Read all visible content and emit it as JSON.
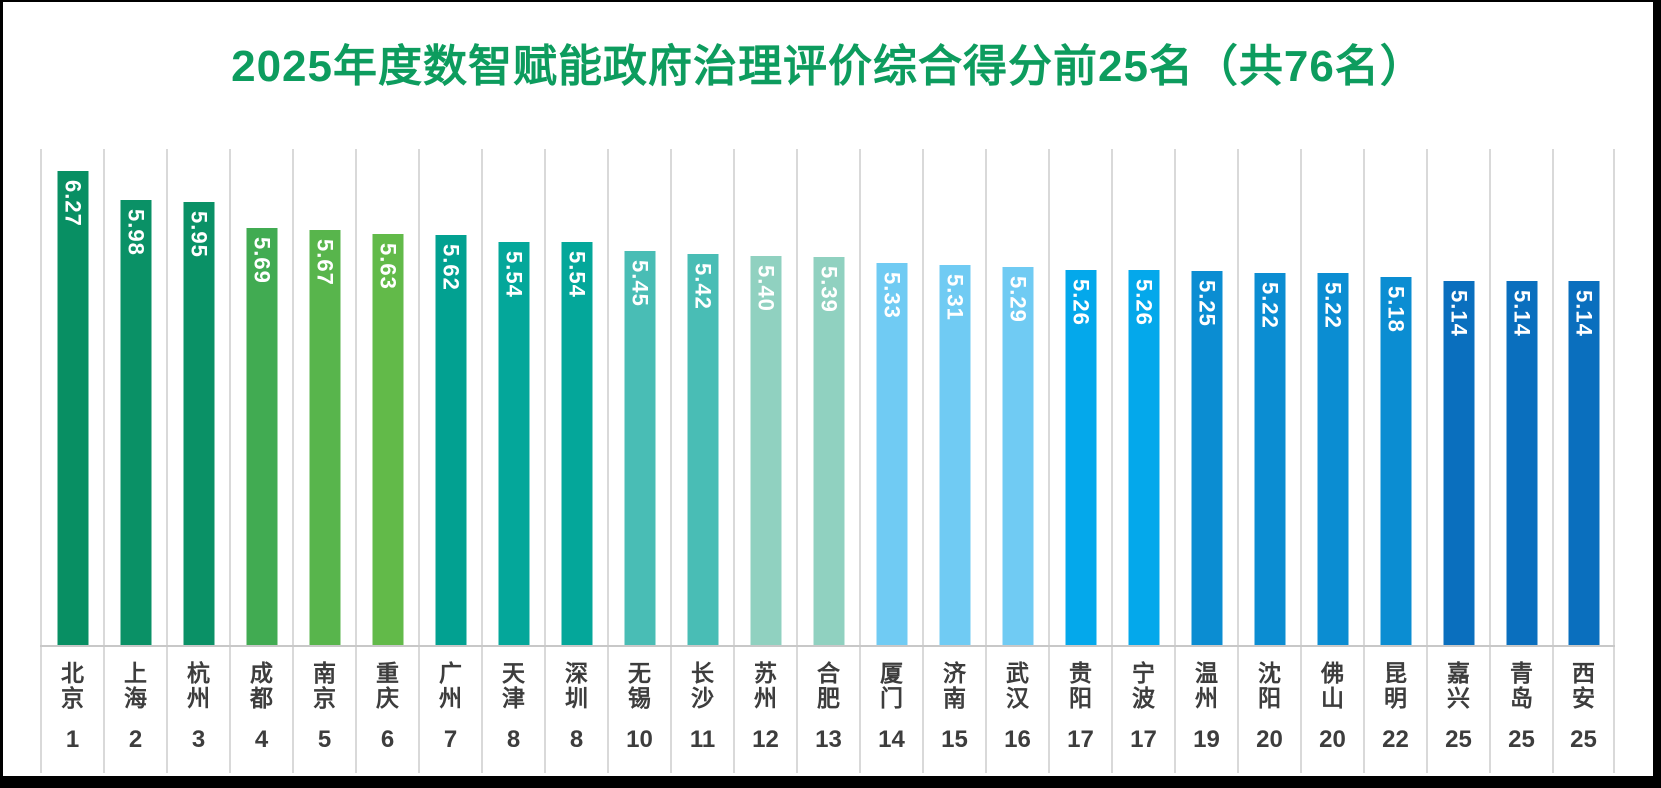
{
  "title": "2025年度数智赋能政府治理评价综合得分前25名（共76名）",
  "chart_data": {
    "type": "bar",
    "title": "2025年度数智赋能政府治理评价综合得分前25名（共76名）",
    "categories": [
      "北京",
      "上海",
      "杭州",
      "成都",
      "南京",
      "重庆",
      "广州",
      "天津",
      "深圳",
      "无锡",
      "长沙",
      "苏州",
      "合肥",
      "厦门",
      "济南",
      "武汉",
      "贵阳",
      "宁波",
      "温州",
      "沈阳",
      "佛山",
      "昆明",
      "嘉兴",
      "青岛",
      "西安"
    ],
    "ranks": [
      "1",
      "2",
      "3",
      "4",
      "5",
      "6",
      "7",
      "8",
      "8",
      "10",
      "11",
      "12",
      "13",
      "14",
      "15",
      "16",
      "17",
      "17",
      "19",
      "20",
      "20",
      "22",
      "25",
      "25",
      "25"
    ],
    "values": [
      6.27,
      5.98,
      5.95,
      5.69,
      5.67,
      5.63,
      5.62,
      5.54,
      5.54,
      5.45,
      5.42,
      5.4,
      5.39,
      5.33,
      5.31,
      5.29,
      5.26,
      5.26,
      5.25,
      5.22,
      5.22,
      5.18,
      5.14,
      5.14,
      5.14
    ],
    "value_labels": [
      "6.27",
      "5.98",
      "5.95",
      "5.69",
      "5.67",
      "5.63",
      "5.62",
      "5.54",
      "5.54",
      "5.45",
      "5.42",
      "5.40",
      "5.39",
      "5.33",
      "5.31",
      "5.29",
      "5.26",
      "5.26",
      "5.25",
      "5.22",
      "5.22",
      "5.18",
      "5.14",
      "5.14",
      "5.14"
    ],
    "bar_colors": [
      "#088F63",
      "#0A9166",
      "#0A9166",
      "#41AB52",
      "#58B54C",
      "#62BA49",
      "#02A191",
      "#04A79A",
      "#04A79A",
      "#49BDB5",
      "#49BDB5",
      "#90D1C0",
      "#90D1C0",
      "#70CBF3",
      "#70CBF3",
      "#70CBF3",
      "#04A8EB",
      "#04A8EB",
      "#0B8DD2",
      "#0B8DD2",
      "#0B8DD2",
      "#0B8DD2",
      "#0A6FBE",
      "#0A6FBE",
      "#0A6FBE"
    ],
    "xlabel": "",
    "ylabel": "",
    "ylim": [
      1.4,
      6.5
    ],
    "legend": "none",
    "grid": "vertical category separators only",
    "value_label_position": "inside bar top, rotated 90deg clockwise"
  },
  "style": {
    "title_color": "#0D9C5E",
    "value_label_color": "#FFFFFF",
    "category_label_color": "#3D3D3D",
    "gridline_color": "#D9D9D9",
    "axis_line_color": "#C8C8C8",
    "background_color": "#FFFFFF",
    "frame_color": "#000000"
  }
}
